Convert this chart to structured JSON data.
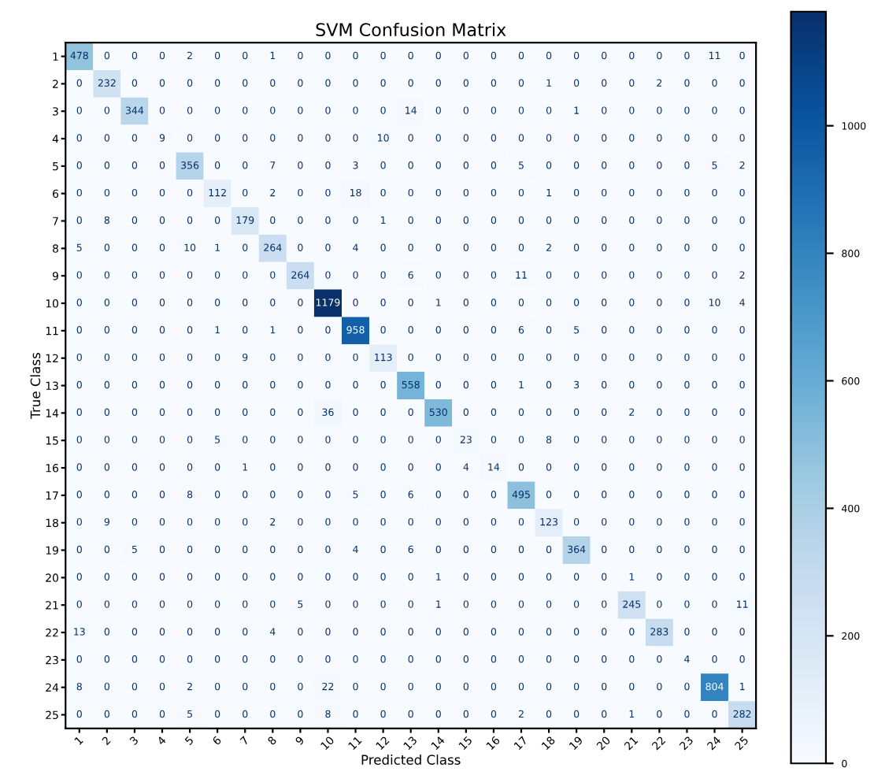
{
  "chart_data": {
    "type": "heatmap",
    "title": "SVM Confusion Matrix",
    "xlabel": "Predicted Class",
    "ylabel": "True Class",
    "categories": [
      "1",
      "2",
      "3",
      "4",
      "5",
      "6",
      "7",
      "8",
      "9",
      "10",
      "11",
      "12",
      "13",
      "14",
      "15",
      "16",
      "17",
      "18",
      "19",
      "20",
      "21",
      "22",
      "23",
      "24",
      "25"
    ],
    "y_categories": [
      "1",
      "2",
      "3",
      "4",
      "5",
      "6",
      "7",
      "8",
      "9",
      "10",
      "11",
      "12",
      "13",
      "14",
      "15",
      "16",
      "17",
      "18",
      "19",
      "20",
      "21",
      "22",
      "23",
      "24",
      "25"
    ],
    "cells": [
      [
        478,
        0,
        0,
        0,
        2,
        0,
        0,
        1,
        0,
        0,
        0,
        0,
        0,
        0,
        0,
        0,
        0,
        0,
        0,
        0,
        0,
        0,
        0,
        11,
        0
      ],
      [
        0,
        232,
        0,
        0,
        0,
        0,
        0,
        0,
        0,
        0,
        0,
        0,
        0,
        0,
        0,
        0,
        0,
        1,
        0,
        0,
        0,
        2,
        0,
        0,
        0
      ],
      [
        0,
        0,
        344,
        0,
        0,
        0,
        0,
        0,
        0,
        0,
        0,
        0,
        14,
        0,
        0,
        0,
        0,
        0,
        1,
        0,
        0,
        0,
        0,
        0,
        0
      ],
      [
        0,
        0,
        0,
        9,
        0,
        0,
        0,
        0,
        0,
        0,
        0,
        10,
        0,
        0,
        0,
        0,
        0,
        0,
        0,
        0,
        0,
        0,
        0,
        0,
        0
      ],
      [
        0,
        0,
        0,
        0,
        356,
        0,
        0,
        7,
        0,
        0,
        3,
        0,
        0,
        0,
        0,
        0,
        5,
        0,
        0,
        0,
        0,
        0,
        0,
        5,
        2
      ],
      [
        0,
        0,
        0,
        0,
        0,
        112,
        0,
        2,
        0,
        0,
        18,
        0,
        0,
        0,
        0,
        0,
        0,
        1,
        0,
        0,
        0,
        0,
        0,
        0,
        0
      ],
      [
        0,
        8,
        0,
        0,
        0,
        0,
        179,
        0,
        0,
        0,
        0,
        1,
        0,
        0,
        0,
        0,
        0,
        0,
        0,
        0,
        0,
        0,
        0,
        0,
        0
      ],
      [
        5,
        0,
        0,
        0,
        10,
        1,
        0,
        264,
        0,
        0,
        4,
        0,
        0,
        0,
        0,
        0,
        0,
        2,
        0,
        0,
        0,
        0,
        0,
        0,
        0
      ],
      [
        0,
        0,
        0,
        0,
        0,
        0,
        0,
        0,
        264,
        0,
        0,
        0,
        6,
        0,
        0,
        0,
        11,
        0,
        0,
        0,
        0,
        0,
        0,
        0,
        2
      ],
      [
        0,
        0,
        0,
        0,
        0,
        0,
        0,
        0,
        0,
        1179,
        0,
        0,
        0,
        1,
        0,
        0,
        0,
        0,
        0,
        0,
        0,
        0,
        0,
        10,
        4
      ],
      [
        0,
        0,
        0,
        0,
        0,
        1,
        0,
        1,
        0,
        0,
        958,
        0,
        0,
        0,
        0,
        0,
        6,
        0,
        5,
        0,
        0,
        0,
        0,
        0,
        0
      ],
      [
        0,
        0,
        0,
        0,
        0,
        0,
        9,
        0,
        0,
        0,
        0,
        113,
        0,
        0,
        0,
        0,
        0,
        0,
        0,
        0,
        0,
        0,
        0,
        0,
        0
      ],
      [
        0,
        0,
        0,
        0,
        0,
        0,
        0,
        0,
        0,
        0,
        0,
        0,
        558,
        0,
        0,
        0,
        1,
        0,
        3,
        0,
        0,
        0,
        0,
        0,
        0
      ],
      [
        0,
        0,
        0,
        0,
        0,
        0,
        0,
        0,
        0,
        36,
        0,
        0,
        0,
        530,
        0,
        0,
        0,
        0,
        0,
        0,
        2,
        0,
        0,
        0,
        0
      ],
      [
        0,
        0,
        0,
        0,
        0,
        5,
        0,
        0,
        0,
        0,
        0,
        0,
        0,
        0,
        23,
        0,
        0,
        8,
        0,
        0,
        0,
        0,
        0,
        0,
        0
      ],
      [
        0,
        0,
        0,
        0,
        0,
        0,
        1,
        0,
        0,
        0,
        0,
        0,
        0,
        0,
        4,
        14,
        0,
        0,
        0,
        0,
        0,
        0,
        0,
        0,
        0
      ],
      [
        0,
        0,
        0,
        0,
        8,
        0,
        0,
        0,
        0,
        0,
        5,
        0,
        6,
        0,
        0,
        0,
        495,
        0,
        0,
        0,
        0,
        0,
        0,
        0,
        0
      ],
      [
        0,
        9,
        0,
        0,
        0,
        0,
        0,
        2,
        0,
        0,
        0,
        0,
        0,
        0,
        0,
        0,
        0,
        123,
        0,
        0,
        0,
        0,
        0,
        0,
        0
      ],
      [
        0,
        0,
        5,
        0,
        0,
        0,
        0,
        0,
        0,
        0,
        4,
        0,
        6,
        0,
        0,
        0,
        0,
        0,
        364,
        0,
        0,
        0,
        0,
        0,
        0
      ],
      [
        0,
        0,
        0,
        0,
        0,
        0,
        0,
        0,
        0,
        0,
        0,
        0,
        0,
        1,
        0,
        0,
        0,
        0,
        0,
        0,
        1,
        0,
        0,
        0,
        0
      ],
      [
        0,
        0,
        0,
        0,
        0,
        0,
        0,
        0,
        5,
        0,
        0,
        0,
        0,
        1,
        0,
        0,
        0,
        0,
        0,
        0,
        245,
        0,
        0,
        0,
        11
      ],
      [
        13,
        0,
        0,
        0,
        0,
        0,
        0,
        4,
        0,
        0,
        0,
        0,
        0,
        0,
        0,
        0,
        0,
        0,
        0,
        0,
        0,
        283,
        0,
        0,
        0
      ],
      [
        0,
        0,
        0,
        0,
        0,
        0,
        0,
        0,
        0,
        0,
        0,
        0,
        0,
        0,
        0,
        0,
        0,
        0,
        0,
        0,
        0,
        0,
        4,
        0,
        0
      ],
      [
        8,
        0,
        0,
        0,
        2,
        0,
        0,
        0,
        0,
        22,
        0,
        0,
        0,
        0,
        0,
        0,
        0,
        0,
        0,
        0,
        0,
        0,
        0,
        804,
        1
      ],
      [
        0,
        0,
        0,
        0,
        5,
        0,
        0,
        0,
        0,
        8,
        0,
        0,
        0,
        0,
        0,
        0,
        2,
        0,
        0,
        0,
        1,
        0,
        0,
        0,
        282
      ]
    ],
    "data_labels": true,
    "clim": [
      0,
      1179
    ],
    "cticks": [
      0,
      200,
      400,
      600,
      800,
      1000
    ]
  }
}
